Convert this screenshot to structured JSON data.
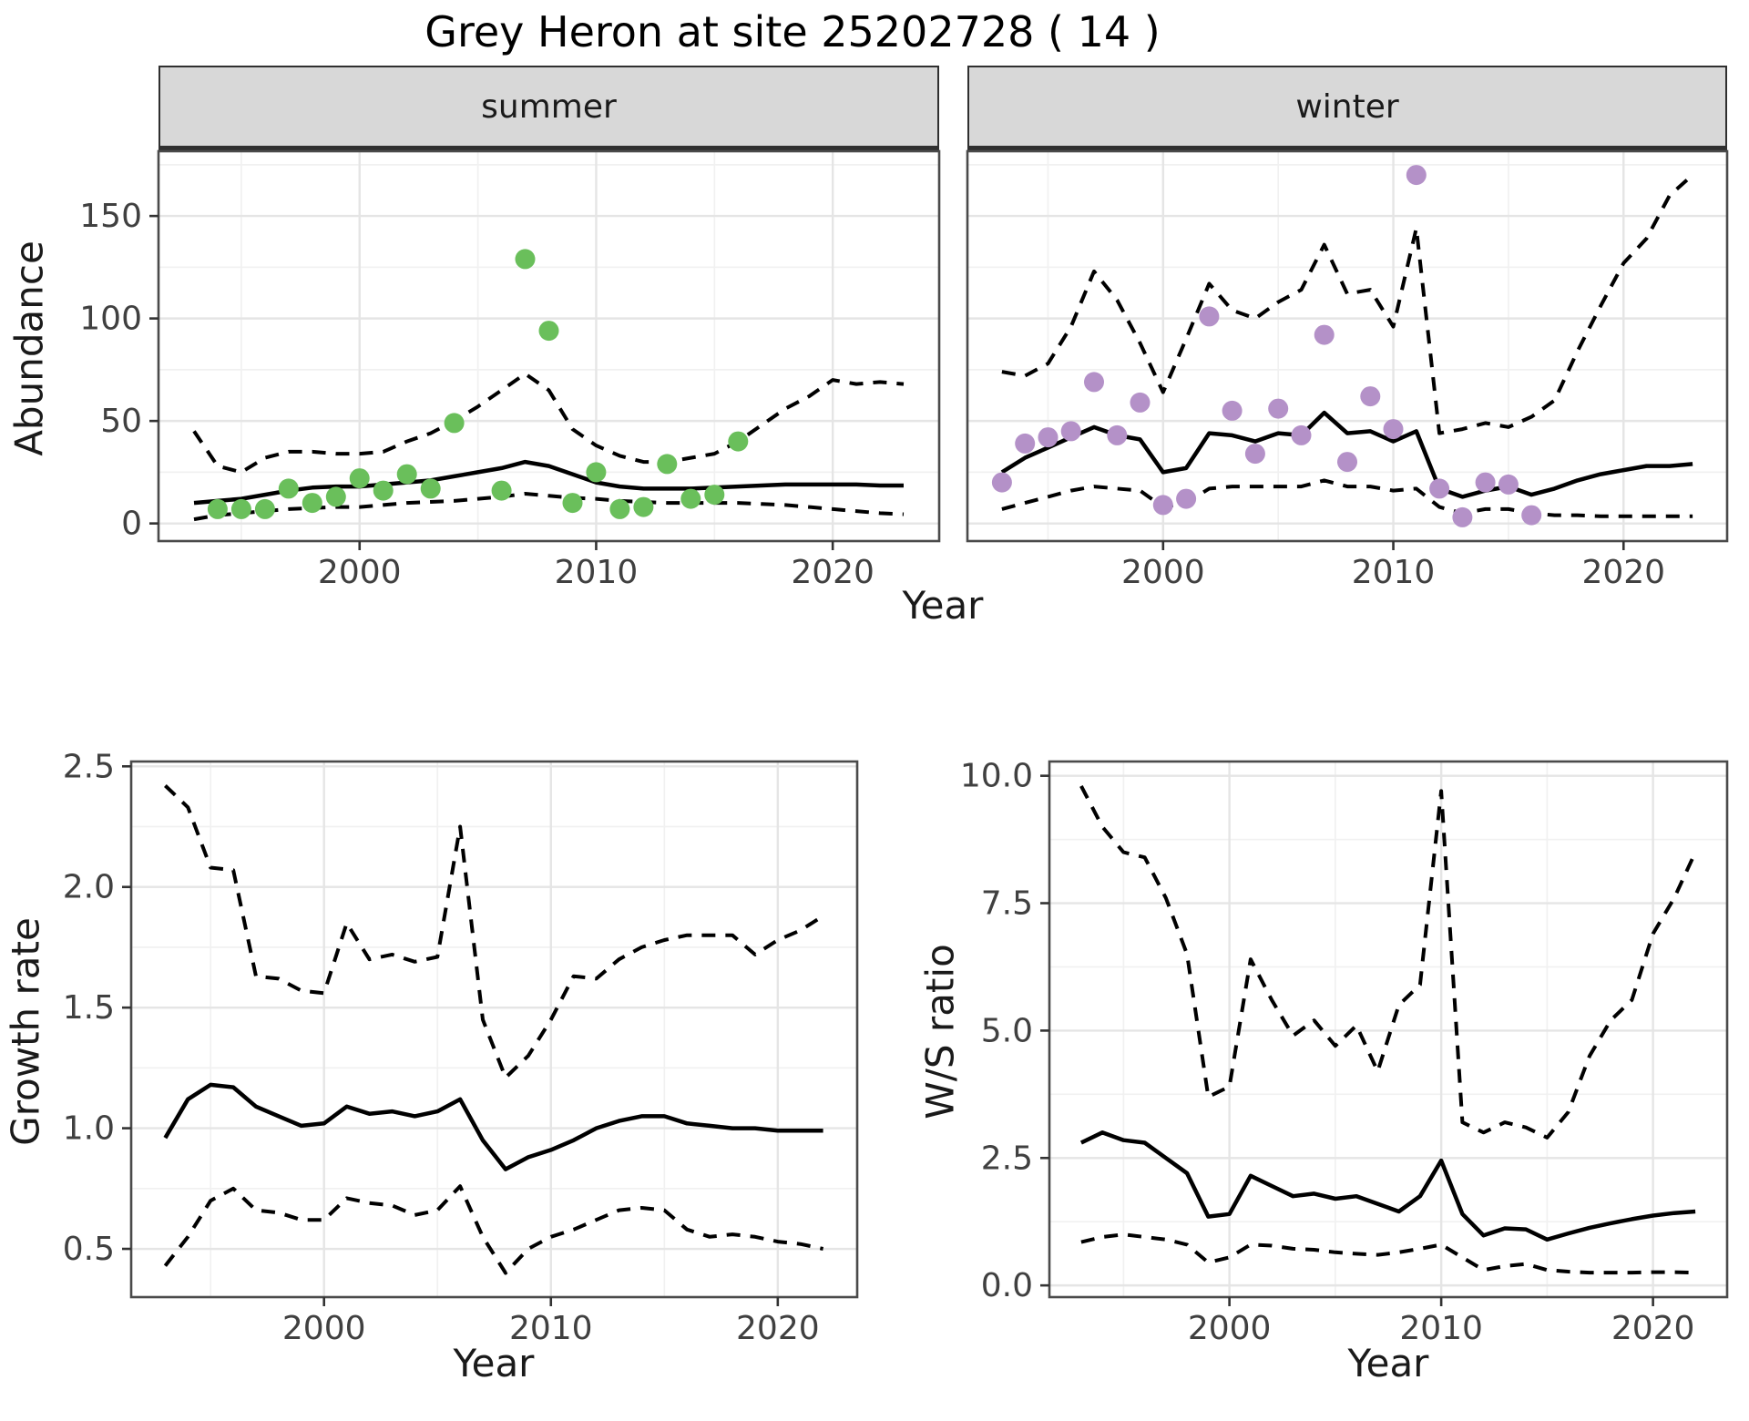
{
  "title": "Grey Heron at site 25202728 ( 14 )",
  "facets": [
    "summer",
    "winter"
  ],
  "axis_labels": {
    "x": "Year",
    "abundance": "Abundance",
    "growth": "Growth rate",
    "ws": "W/S ratio"
  },
  "colors": {
    "summer_point": "#6abf5b",
    "winter_point": "#b491c8",
    "trend_line": "#000000",
    "ci_line": "#000000",
    "grid_major": "#e5e5e5",
    "grid_minor": "#f1f1f1",
    "panel_border": "#4a4a4a",
    "strip_bg": "#d8d8d8",
    "tick_text": "#404040"
  },
  "chart_data": [
    {
      "id": "summer",
      "type": "line",
      "facet_label": "summer",
      "xlabel": "Year",
      "ylabel": "Abundance",
      "xlim": [
        1991.5,
        2024.5
      ],
      "ylim": [
        -8.6,
        181.6
      ],
      "x_major": {
        "values": [
          2000,
          2010,
          2020
        ],
        "labels": [
          "2000",
          "2010",
          "2020"
        ]
      },
      "x_minor": [
        1995,
        2005,
        2015
      ],
      "y_major": {
        "values": [
          0,
          50,
          100,
          150
        ],
        "labels": [
          "0",
          "50",
          "100",
          "150"
        ]
      },
      "y_minor": [
        25,
        75,
        125,
        175
      ],
      "show_y_labels": true,
      "x": [
        1993,
        1994,
        1995,
        1996,
        1997,
        1998,
        1999,
        2000,
        2001,
        2002,
        2003,
        2004,
        2005,
        2006,
        2007,
        2008,
        2009,
        2010,
        2011,
        2012,
        2013,
        2014,
        2015,
        2016,
        2017,
        2018,
        2019,
        2020,
        2021,
        2022,
        2023
      ],
      "series": [
        {
          "name": "trend",
          "style": "solid",
          "values": [
            10,
            11,
            12,
            14,
            16,
            17.5,
            18,
            18,
            19,
            20,
            21,
            23,
            25,
            27,
            30,
            28,
            24,
            20,
            18,
            17,
            17,
            17,
            17.5,
            18,
            18.5,
            19,
            19,
            19,
            19,
            18.5,
            18.5
          ]
        },
        {
          "name": "upper-ci",
          "style": "dashed",
          "values": [
            45,
            28,
            25,
            32,
            35,
            35,
            34,
            34,
            35,
            40,
            44,
            50,
            57,
            65,
            73,
            65,
            46,
            38,
            33,
            30,
            30,
            32,
            34,
            40,
            48,
            56,
            62,
            70,
            68,
            69,
            68
          ]
        },
        {
          "name": "lower-ci",
          "style": "dashed",
          "values": [
            2,
            4,
            5,
            6,
            7,
            7.5,
            8,
            8,
            9,
            10,
            10.5,
            11,
            12,
            13,
            14.5,
            13.5,
            12.5,
            12,
            11,
            10.5,
            10,
            10,
            10,
            10,
            9.5,
            9,
            8,
            7,
            6,
            5,
            4.5
          ]
        }
      ],
      "points": {
        "color_key": "summer_point",
        "x": [
          1994,
          1995,
          1996,
          1997,
          1998,
          1999,
          2000,
          2001,
          2002,
          2003,
          2004,
          2006,
          2007,
          2008,
          2009,
          2010,
          2011,
          2012,
          2013,
          2014,
          2015,
          2016
        ],
        "y": [
          7,
          7,
          7,
          17,
          10,
          13,
          22,
          16,
          24,
          17,
          49,
          16,
          129,
          94,
          10,
          25,
          7,
          8,
          29,
          12,
          14,
          40
        ]
      }
    },
    {
      "id": "winter",
      "type": "line",
      "facet_label": "winter",
      "xlabel": "Year",
      "ylabel": "Abundance",
      "xlim": [
        1991.5,
        2024.5
      ],
      "ylim": [
        -8.6,
        181.6
      ],
      "x_major": {
        "values": [
          2000,
          2010,
          2020
        ],
        "labels": [
          "2000",
          "2010",
          "2020"
        ]
      },
      "x_minor": [
        1995,
        2005,
        2015
      ],
      "y_major": {
        "values": [
          0,
          50,
          100,
          150
        ],
        "labels": [
          "0",
          "50",
          "100",
          "150"
        ]
      },
      "y_minor": [
        25,
        75,
        125,
        175
      ],
      "show_y_labels": false,
      "x": [
        1993,
        1994,
        1995,
        1996,
        1997,
        1998,
        1999,
        2000,
        2001,
        2002,
        2003,
        2004,
        2005,
        2006,
        2007,
        2008,
        2009,
        2010,
        2011,
        2012,
        2013,
        2014,
        2015,
        2016,
        2017,
        2018,
        2019,
        2020,
        2021,
        2022,
        2023
      ],
      "series": [
        {
          "name": "trend",
          "style": "solid",
          "values": [
            25,
            32,
            37,
            42,
            47,
            43,
            41,
            25,
            27,
            44,
            43,
            40,
            44,
            43,
            54,
            44,
            45,
            40,
            45,
            17,
            13,
            16,
            18,
            14,
            17,
            21,
            24,
            26,
            28,
            28,
            29
          ]
        },
        {
          "name": "upper-ci",
          "style": "dashed",
          "values": [
            74,
            72,
            78,
            96,
            123,
            109,
            88,
            64,
            90,
            117,
            104,
            100,
            108,
            114,
            136,
            112,
            114,
            96,
            144,
            44,
            46,
            49,
            47,
            52,
            60,
            84,
            106,
            127,
            139,
            160,
            170
          ]
        },
        {
          "name": "lower-ci",
          "style": "dashed",
          "values": [
            7,
            10,
            13,
            16,
            18,
            17,
            16,
            8,
            10,
            17,
            18,
            18,
            18,
            18,
            21,
            18,
            18,
            16,
            17,
            8,
            5,
            7,
            7,
            5,
            4,
            4,
            3.5,
            3.5,
            3.5,
            3.5,
            3.5
          ]
        }
      ],
      "points": {
        "color_key": "winter_point",
        "x": [
          1993,
          1994,
          1995,
          1996,
          1997,
          1998,
          1999,
          2000,
          2001,
          2002,
          2003,
          2004,
          2005,
          2006,
          2007,
          2008,
          2009,
          2010,
          2011,
          2012,
          2013,
          2014,
          2015,
          2016
        ],
        "y": [
          20,
          39,
          42,
          45,
          69,
          43,
          59,
          9,
          12,
          101,
          55,
          34,
          56,
          43,
          92,
          30,
          62,
          46,
          170,
          17,
          3,
          20,
          19,
          4
        ]
      }
    },
    {
      "id": "growth",
      "type": "line",
      "facet_label": null,
      "xlabel": "Year",
      "ylabel": "Growth rate",
      "xlim": [
        1991.5,
        2023.5
      ],
      "ylim": [
        0.3,
        2.52
      ],
      "x_major": {
        "values": [
          2000,
          2010,
          2020
        ],
        "labels": [
          "2000",
          "2010",
          "2020"
        ]
      },
      "x_minor": [
        1995,
        2005,
        2015
      ],
      "y_major": {
        "values": [
          0.5,
          1.0,
          1.5,
          2.0,
          2.5
        ],
        "labels": [
          "0.5",
          "1.0",
          "1.5",
          "2.0",
          "2.5"
        ]
      },
      "y_minor": [
        0.75,
        1.25,
        1.75,
        2.25
      ],
      "show_y_labels": true,
      "x": [
        1993,
        1994,
        1995,
        1996,
        1997,
        1998,
        1999,
        2000,
        2001,
        2002,
        2003,
        2004,
        2005,
        2006,
        2007,
        2008,
        2009,
        2010,
        2011,
        2012,
        2013,
        2014,
        2015,
        2016,
        2017,
        2018,
        2019,
        2020,
        2021,
        2022
      ],
      "series": [
        {
          "name": "trend",
          "style": "solid",
          "values": [
            0.96,
            1.12,
            1.18,
            1.17,
            1.09,
            1.05,
            1.01,
            1.02,
            1.09,
            1.06,
            1.07,
            1.05,
            1.07,
            1.12,
            0.95,
            0.83,
            0.88,
            0.91,
            0.95,
            1.0,
            1.03,
            1.05,
            1.05,
            1.02,
            1.01,
            1.0,
            1.0,
            0.99,
            0.99,
            0.99
          ]
        },
        {
          "name": "upper-ci",
          "style": "dashed",
          "values": [
            2.42,
            2.33,
            2.08,
            2.07,
            1.63,
            1.62,
            1.57,
            1.56,
            1.85,
            1.7,
            1.72,
            1.69,
            1.71,
            2.25,
            1.45,
            1.21,
            1.3,
            1.45,
            1.63,
            1.62,
            1.7,
            1.75,
            1.78,
            1.8,
            1.8,
            1.8,
            1.72,
            1.78,
            1.82,
            1.88
          ]
        },
        {
          "name": "lower-ci",
          "style": "dashed",
          "values": [
            0.43,
            0.55,
            0.7,
            0.75,
            0.66,
            0.65,
            0.62,
            0.62,
            0.71,
            0.69,
            0.68,
            0.64,
            0.66,
            0.76,
            0.55,
            0.4,
            0.5,
            0.55,
            0.58,
            0.62,
            0.66,
            0.67,
            0.66,
            0.58,
            0.55,
            0.56,
            0.55,
            0.53,
            0.52,
            0.5
          ]
        }
      ],
      "points": null
    },
    {
      "id": "ws",
      "type": "line",
      "facet_label": null,
      "xlabel": "Year",
      "ylabel": "W/S ratio",
      "xlim": [
        1991.5,
        2023.5
      ],
      "ylim": [
        -0.23,
        10.28
      ],
      "x_major": {
        "values": [
          2000,
          2010,
          2020
        ],
        "labels": [
          "2000",
          "2010",
          "2020"
        ]
      },
      "x_minor": [
        1995,
        2005,
        2015
      ],
      "y_major": {
        "values": [
          0.0,
          2.5,
          5.0,
          7.5,
          10.0
        ],
        "labels": [
          "0.0",
          "2.5",
          "5.0",
          "7.5",
          "10.0"
        ]
      },
      "y_minor": [
        1.25,
        3.75,
        6.25,
        8.75
      ],
      "show_y_labels": true,
      "x": [
        1993,
        1994,
        1995,
        1996,
        1997,
        1998,
        1999,
        2000,
        2001,
        2002,
        2003,
        2004,
        2005,
        2006,
        2007,
        2008,
        2009,
        2010,
        2011,
        2012,
        2013,
        2014,
        2015,
        2016,
        2017,
        2018,
        2019,
        2020,
        2021,
        2022
      ],
      "series": [
        {
          "name": "trend",
          "style": "solid",
          "values": [
            2.8,
            3.0,
            2.85,
            2.8,
            2.5,
            2.2,
            1.35,
            1.4,
            2.15,
            1.95,
            1.75,
            1.8,
            1.7,
            1.75,
            1.6,
            1.45,
            1.75,
            2.45,
            1.4,
            0.98,
            1.12,
            1.1,
            0.9,
            1.02,
            1.13,
            1.22,
            1.3,
            1.37,
            1.42,
            1.45
          ]
        },
        {
          "name": "upper-ci",
          "style": "dashed",
          "values": [
            9.8,
            9.0,
            8.5,
            8.4,
            7.6,
            6.5,
            3.7,
            3.9,
            6.4,
            5.6,
            4.9,
            5.2,
            4.7,
            5.1,
            4.2,
            5.5,
            5.9,
            9.7,
            3.2,
            3.0,
            3.2,
            3.1,
            2.9,
            3.4,
            4.5,
            5.2,
            5.6,
            6.9,
            7.6,
            8.5
          ]
        },
        {
          "name": "lower-ci",
          "style": "dashed",
          "values": [
            0.85,
            0.95,
            1.0,
            0.95,
            0.9,
            0.8,
            0.45,
            0.55,
            0.8,
            0.78,
            0.72,
            0.7,
            0.65,
            0.62,
            0.6,
            0.65,
            0.72,
            0.8,
            0.55,
            0.3,
            0.38,
            0.42,
            0.3,
            0.27,
            0.25,
            0.25,
            0.25,
            0.26,
            0.26,
            0.25
          ]
        }
      ],
      "points": null
    }
  ]
}
